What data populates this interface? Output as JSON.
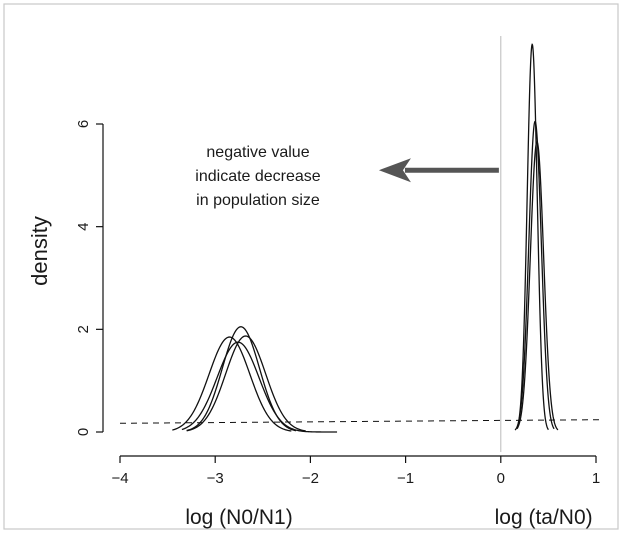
{
  "chart_data": {
    "type": "line",
    "title": "",
    "ylabel": "density",
    "xlim": [
      -4.2,
      1.1
    ],
    "ylim": [
      0,
      7.8
    ],
    "x_ticks": [
      -4,
      -3,
      -2,
      -1,
      0,
      1
    ],
    "x_tick_labels": [
      "−4",
      "−3",
      "−2",
      "−1",
      "0",
      "1"
    ],
    "y_ticks": [
      0,
      2,
      4,
      6
    ],
    "y_tick_labels": [
      "0",
      "2",
      "4",
      "6"
    ],
    "grid": false,
    "legend": "none",
    "x_axis_labels": [
      {
        "text": "log (N0/N1)",
        "x": -2.75
      },
      {
        "text": "log (ta/N0)",
        "x": 0.45
      }
    ],
    "annotation": {
      "lines": [
        "negative value",
        "indicate decrease",
        "in population size"
      ],
      "arrow": {
        "from_x": -0.02,
        "to_x": -1.28,
        "y": 5.1
      }
    },
    "reference_line": {
      "x": 0
    },
    "series": [
      {
        "mean": -2.85,
        "sd": 0.215,
        "peak": 1.85,
        "x_range": [
          -3.45,
          -2.2
        ]
      },
      {
        "mean": -2.73,
        "sd": 0.195,
        "peak": 2.05,
        "x_range": [
          -3.3,
          -2.15
        ]
      },
      {
        "mean": -2.68,
        "sd": 0.21,
        "peak": 1.87,
        "x_range": [
          -3.3,
          -2.05
        ]
      },
      {
        "mean": -2.76,
        "sd": 0.22,
        "peak": 1.75,
        "x_range": [
          -3.35,
          -1.72
        ]
      },
      {
        "mean": 0.33,
        "sd": 0.053,
        "peak": 7.55,
        "x_range": [
          0.17,
          0.5
        ]
      },
      {
        "mean": 0.36,
        "sd": 0.066,
        "peak": 6.05,
        "x_range": [
          0.15,
          0.56
        ]
      },
      {
        "mean": 0.38,
        "sd": 0.07,
        "peak": 5.65,
        "x_range": [
          0.17,
          0.6
        ]
      }
    ],
    "prior_line": {
      "x": [
        -4.0,
        1.05
      ],
      "y": [
        0.17,
        0.24
      ],
      "style": "dashed"
    }
  },
  "colors": {
    "line": "#111111",
    "arrow": "#555555",
    "reference": "#bbbbbb",
    "border": "#c8c8c8"
  }
}
